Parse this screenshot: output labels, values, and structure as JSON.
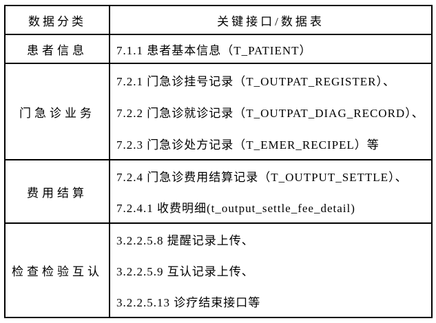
{
  "table": {
    "header": {
      "col_category": "数据分类",
      "col_interfaces": "关键接口/数据表"
    },
    "rows": [
      {
        "category": "患者信息",
        "items": [
          "7.1.1 患者基本信息（T_PATIENT）"
        ]
      },
      {
        "category": "门急诊业务",
        "items": [
          "7.2.1 门急诊挂号记录（T_OUTPAT_REGISTER）、",
          "7.2.2 门急诊就诊记录（T_OUTPAT_DIAG_RECORD）、",
          "7.2.3 门急诊处方记录（T_EMER_RECIPEL）等"
        ]
      },
      {
        "category": "费用结算",
        "items": [
          "7.2.4 门急诊费用结算记录（T_OUTPUT_SETTLE）、",
          "7.2.4.1 收费明细(t_output_settle_fee_detail)"
        ]
      },
      {
        "category": "检查检验互认",
        "items": [
          "3.2.2.5.8 提醒记录上传、",
          "3.2.2.5.9 互认记录上传、",
          "3.2.2.5.13 诊疗结束接口等"
        ]
      }
    ]
  }
}
